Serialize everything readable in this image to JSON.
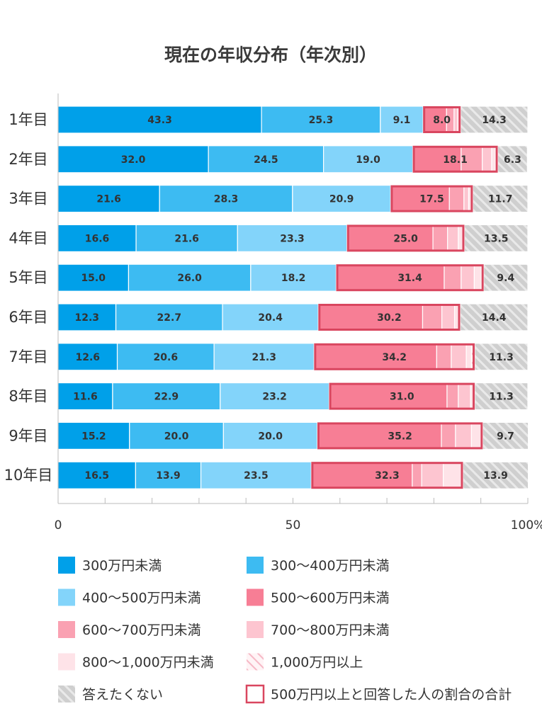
{
  "chart_data": {
    "type": "bar",
    "orientation": "horizontal",
    "stacked": true,
    "title": "現在の年収分布（年次別）",
    "categories": [
      "1年目",
      "2年目",
      "3年目",
      "4年目",
      "5年目",
      "6年目",
      "7年目",
      "8年目",
      "9年目",
      "10年目"
    ],
    "xlim": [
      0,
      100
    ],
    "x_ticks": [
      "0",
      "50",
      "100%"
    ],
    "grid": false,
    "legend_position": "bottom",
    "series": [
      {
        "name": "300万円未満",
        "color": "#00a0e9",
        "values": [
          43.3,
          32.0,
          21.6,
          16.6,
          15.0,
          12.3,
          12.6,
          11.6,
          15.2,
          16.5
        ],
        "labels": [
          "43.3",
          "32.0",
          "21.6",
          "16.6",
          "15.0",
          "12.3",
          "12.6",
          "11.6",
          "15.2",
          "16.5"
        ]
      },
      {
        "name": "300〜400万円未満",
        "color": "#3dbbf2",
        "values": [
          25.3,
          24.5,
          28.3,
          21.6,
          26.0,
          22.7,
          20.6,
          22.9,
          20.0,
          13.9
        ],
        "labels": [
          "25.3",
          "24.5",
          "28.3",
          "21.6",
          "26.0",
          "22.7",
          "20.6",
          "22.9",
          "20.0",
          "13.9"
        ]
      },
      {
        "name": "400〜500万円未満",
        "color": "#83d4fa",
        "values": [
          9.1,
          19.0,
          20.9,
          23.3,
          18.2,
          20.4,
          21.3,
          23.2,
          20.0,
          23.5
        ],
        "labels": [
          "9.1",
          "19.0",
          "20.9",
          "23.3",
          "18.2",
          "20.4",
          "21.3",
          "23.2",
          "20.0",
          "23.5"
        ]
      },
      {
        "name": "500〜600万円未満",
        "color": "#f77e95",
        "values": [
          5.0,
          10.3,
          12.5,
          18.3,
          23.0,
          22.2,
          26.1,
          25.1,
          26.4,
          21.5
        ]
      },
      {
        "name": "600〜700万円未満",
        "color": "#faa1b2",
        "values": [
          1.6,
          4.5,
          3.1,
          3.1,
          3.6,
          4.1,
          3.1,
          2.4,
          3.0,
          2.0
        ]
      },
      {
        "name": "700〜800万円未満",
        "color": "#fdc5d0",
        "values": [
          0.8,
          2.0,
          1.0,
          2.3,
          2.8,
          2.7,
          3.2,
          2.6,
          3.4,
          4.6
        ]
      },
      {
        "name": "800〜1,000万円未満",
        "color": "#fee3e8",
        "values": [
          0.4,
          0.8,
          0.6,
          1.0,
          1.5,
          1.0,
          1.1,
          0.9,
          2.0,
          4.2
        ]
      },
      {
        "name": "1,000万円以上",
        "color": "#fde6eb",
        "pattern": "hatch",
        "values": [
          0.2,
          0.5,
          0.3,
          0.3,
          0.5,
          0.2,
          0.7,
          0.0,
          0.4,
          0.0
        ]
      },
      {
        "name": "答えたくない",
        "color": "#cccccc",
        "pattern": "hatch",
        "values": [
          14.3,
          6.3,
          11.7,
          13.5,
          9.4,
          14.4,
          11.3,
          11.3,
          9.7,
          13.9
        ],
        "labels": [
          "14.3",
          "6.3",
          "11.7",
          "13.5",
          "9.4",
          "14.4",
          "11.3",
          "11.3",
          "9.7",
          "13.9"
        ]
      }
    ],
    "total_500_plus": {
      "name": "500万円以上と回答した人の割合の合計",
      "color": "#d9465f",
      "values": [
        8.0,
        18.1,
        17.5,
        25.0,
        31.4,
        30.2,
        34.2,
        31.0,
        35.2,
        32.3
      ],
      "labels": [
        "8.0",
        "18.1",
        "17.5",
        "25.0",
        "31.4",
        "30.2",
        "34.2",
        "31.0",
        "35.2",
        "32.3"
      ]
    }
  }
}
